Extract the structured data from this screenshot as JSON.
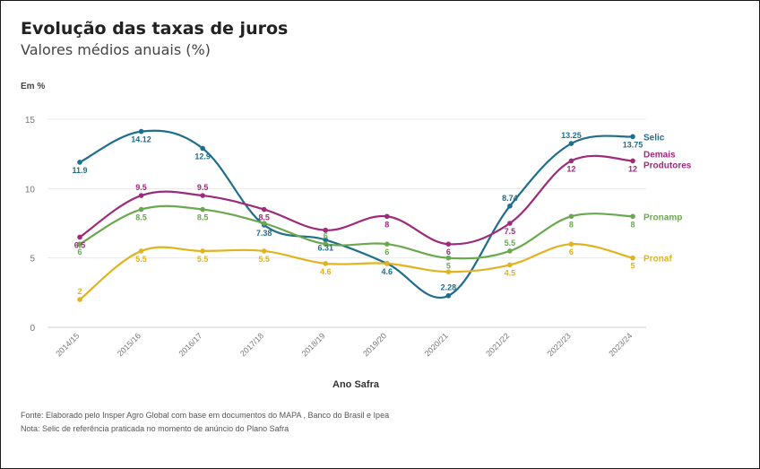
{
  "header": {
    "title": "Evolução das taxas de juros",
    "subtitle": "Valores médios anuais (%)",
    "unit": "Em %"
  },
  "footer": {
    "source": "Fonte: Elaborado pelo Insper Agro Global com base em documentos do MAPA , Banco do Brasil e Ipea",
    "note": "Nota: Selic de referência praticada no momento de anúncio do Plano Safra"
  },
  "chart_data": {
    "type": "line",
    "title": "Evolução das taxas de juros",
    "subtitle": "Valores médios anuais (%)",
    "xlabel": "Ano Safra",
    "ylabel": "Em %",
    "ylim": [
      0,
      15
    ],
    "yticks": [
      0,
      5,
      10,
      15
    ],
    "grid": true,
    "categories": [
      "2014/15",
      "2015/16",
      "2016/17",
      "2017/18",
      "2018/19",
      "2019/20",
      "2020/21",
      "2021/22",
      "2022/23",
      "2023/24"
    ],
    "series": [
      {
        "name": "Selic",
        "color": "#1f6e8c",
        "values": [
          11.9,
          14.12,
          12.9,
          7.38,
          6.31,
          4.6,
          2.28,
          8.74,
          13.25,
          13.75
        ],
        "labels": [
          "11.9",
          "14.12",
          "12.9",
          "7.38",
          "6.31",
          "4.6",
          "2.28",
          "8.74",
          "13.25",
          "13.75"
        ],
        "label_pos": [
          "below",
          "below",
          "below",
          "below",
          "below",
          "below",
          "above",
          "above",
          "above",
          "below"
        ]
      },
      {
        "name": "Demais Produtores",
        "label_lines": [
          "Demais",
          "Produtores"
        ],
        "color": "#9e2a7b",
        "values": [
          6.5,
          9.5,
          9.5,
          8.5,
          7,
          8,
          6,
          7.5,
          12,
          12
        ],
        "labels": [
          "6.5",
          "9.5",
          "9.5",
          "8.5",
          "",
          "8",
          "6",
          "7.5",
          "12",
          "12"
        ],
        "label_pos": [
          "below",
          "above",
          "above",
          "below",
          "none",
          "below",
          "below",
          "below",
          "below",
          "below"
        ]
      },
      {
        "name": "Pronamp",
        "color": "#6aa84f",
        "values": [
          6,
          8.5,
          8.5,
          7.5,
          6,
          6,
          5,
          5.5,
          8,
          8
        ],
        "labels": [
          "6",
          "8.5",
          "8.5",
          "",
          "6",
          "6",
          "5",
          "5.5",
          "8",
          "8"
        ],
        "label_pos": [
          "below",
          "below",
          "below",
          "none",
          "above",
          "below",
          "below",
          "above",
          "below",
          "below"
        ]
      },
      {
        "name": "Pronaf",
        "color": "#e0b31f",
        "values": [
          2,
          5.5,
          5.5,
          5.5,
          4.6,
          4.6,
          4,
          4.5,
          6,
          5
        ],
        "labels": [
          "2",
          "5.5",
          "5.5",
          "5.5",
          "4.6",
          "",
          "",
          "4.5",
          "6",
          "5"
        ],
        "label_pos": [
          "above",
          "below",
          "below",
          "below",
          "below",
          "none",
          "none",
          "below",
          "below",
          "below"
        ]
      }
    ]
  }
}
